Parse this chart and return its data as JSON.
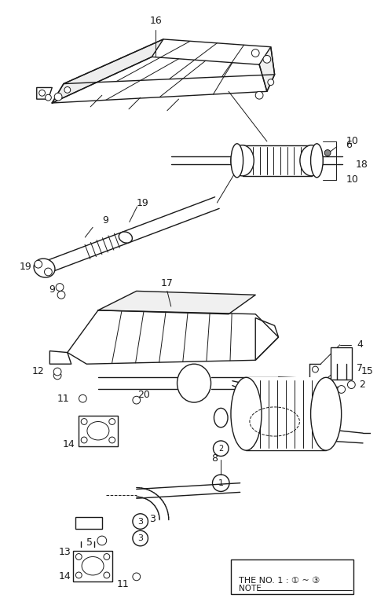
{
  "bg_color": "#ffffff",
  "line_color": "#1a1a1a",
  "figsize": [
    4.8,
    7.75
  ],
  "dpi": 100,
  "note_line1": "NOTE",
  "note_line2": "THE NO. 1 : ① ~ ③"
}
